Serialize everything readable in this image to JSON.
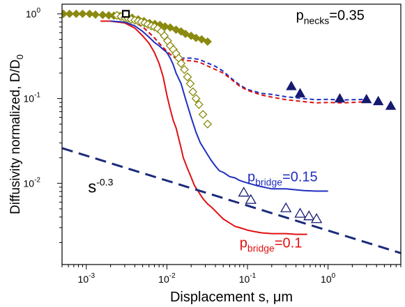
{
  "chart_data": {
    "type": "line",
    "xlabel": "Displacement s, μm",
    "ylabel": "Diffusivity normalized, D/D",
    "ylabel_subscript": "0",
    "x_scale": "log",
    "y_scale": "log",
    "xlim": [
      0.0005,
      8
    ],
    "ylim": [
      0.0011,
      1.3
    ],
    "x_ticks": [
      {
        "value": 0.001,
        "base": "10",
        "exp": "-3"
      },
      {
        "value": 0.01,
        "base": "10",
        "exp": "-2"
      },
      {
        "value": 0.1,
        "base": "10",
        "exp": "-1"
      },
      {
        "value": 1,
        "base": "10",
        "exp": "0"
      }
    ],
    "y_ticks": [
      {
        "value": 1,
        "base": "10",
        "exp": "0"
      },
      {
        "value": 0.1,
        "base": "10",
        "exp": "-1"
      },
      {
        "value": 0.01,
        "base": "10",
        "exp": "-2"
      }
    ],
    "annotations": [
      {
        "id": "pnecks",
        "text": "p",
        "sub": "necks",
        "tail": "=0.35",
        "x": 0.4,
        "y": 0.85,
        "color": "#000000"
      },
      {
        "id": "pbridge015",
        "text": "p",
        "sub": "bridge",
        "tail": "=0.15",
        "x": 0.1,
        "y": 0.0105,
        "color": "#1f2fbf"
      },
      {
        "id": "pbridge01",
        "text": "p",
        "sub": "bridge",
        "tail": "=0.1",
        "x": 0.08,
        "y": 0.00175,
        "color": "#e01010"
      },
      {
        "id": "power-law",
        "text": "s",
        "sup": "-0.3",
        "x": 0.00105,
        "y": 0.0078,
        "color": "#000000"
      }
    ],
    "series": [
      {
        "id": "red-solid",
        "style": "line",
        "color": "#e01010",
        "dash": false,
        "x": [
          0.0015,
          0.002,
          0.003,
          0.004,
          0.005,
          0.006,
          0.007,
          0.008,
          0.009,
          0.01,
          0.011,
          0.012,
          0.013,
          0.014,
          0.015,
          0.016,
          0.018,
          0.02,
          0.022,
          0.025,
          0.028,
          0.032,
          0.036,
          0.04,
          0.045,
          0.05,
          0.06,
          0.07,
          0.08,
          0.1,
          0.12,
          0.15,
          0.2,
          0.3,
          0.4,
          0.55
        ],
        "y": [
          0.82,
          0.82,
          0.78,
          0.68,
          0.55,
          0.45,
          0.35,
          0.26,
          0.18,
          0.11,
          0.075,
          0.055,
          0.045,
          0.034,
          0.026,
          0.02,
          0.015,
          0.0118,
          0.0094,
          0.0078,
          0.0066,
          0.0057,
          0.0052,
          0.0047,
          0.0042,
          0.0038,
          0.0034,
          0.0031,
          0.003,
          0.0028,
          0.0027,
          0.0026,
          0.00255,
          0.00255,
          0.0025,
          0.0025
        ]
      },
      {
        "id": "blue-solid",
        "style": "line",
        "color": "#1f2fbf",
        "dash": false,
        "x": [
          0.002,
          0.003,
          0.004,
          0.005,
          0.006,
          0.007,
          0.008,
          0.009,
          0.01,
          0.011,
          0.012,
          0.013,
          0.015,
          0.017,
          0.02,
          0.023,
          0.026,
          0.03,
          0.035,
          0.04,
          0.045,
          0.05,
          0.06,
          0.07,
          0.08,
          0.09,
          0.1,
          0.13,
          0.16,
          0.2,
          0.3,
          0.5,
          0.7,
          1.0
        ],
        "y": [
          0.82,
          0.8,
          0.72,
          0.62,
          0.53,
          0.46,
          0.42,
          0.38,
          0.35,
          0.3,
          0.25,
          0.2,
          0.15,
          0.1,
          0.06,
          0.04,
          0.03,
          0.024,
          0.019,
          0.016,
          0.014,
          0.0135,
          0.012,
          0.0116,
          0.0108,
          0.0104,
          0.0101,
          0.0094,
          0.009,
          0.0086,
          0.0086,
          0.0082,
          0.0081,
          0.0081
        ]
      },
      {
        "id": "blue-dashed",
        "style": "line",
        "color": "#1f2fbf",
        "dash": true,
        "x": [
          0.003,
          0.004,
          0.005,
          0.006,
          0.007,
          0.008,
          0.009,
          0.01,
          0.012,
          0.015,
          0.018,
          0.02,
          0.025,
          0.03,
          0.04,
          0.05,
          0.06,
          0.07,
          0.08,
          0.1,
          0.15,
          0.2,
          0.3,
          0.5,
          0.7,
          1.0,
          1.5,
          2.0,
          3.0
        ],
        "y": [
          0.85,
          0.8,
          0.7,
          0.6,
          0.52,
          0.45,
          0.4,
          0.36,
          0.31,
          0.3,
          0.3,
          0.3,
          0.29,
          0.27,
          0.24,
          0.21,
          0.18,
          0.16,
          0.145,
          0.128,
          0.115,
          0.112,
          0.105,
          0.1,
          0.097,
          0.098,
          0.096,
          0.097,
          0.098
        ]
      },
      {
        "id": "red-dashed",
        "style": "line",
        "color": "#e01010",
        "dash": true,
        "x": [
          0.003,
          0.004,
          0.005,
          0.006,
          0.007,
          0.008,
          0.009,
          0.01,
          0.012,
          0.015,
          0.018,
          0.02,
          0.025,
          0.03,
          0.04,
          0.05,
          0.06,
          0.07,
          0.08,
          0.1,
          0.15,
          0.2,
          0.3,
          0.5,
          0.7,
          1.0,
          1.5,
          2.0,
          3.0
        ],
        "y": [
          0.86,
          0.8,
          0.7,
          0.6,
          0.52,
          0.45,
          0.4,
          0.36,
          0.31,
          0.29,
          0.28,
          0.28,
          0.27,
          0.25,
          0.22,
          0.2,
          0.175,
          0.155,
          0.14,
          0.125,
          0.11,
          0.104,
          0.097,
          0.092,
          0.089,
          0.09,
          0.089,
          0.09,
          0.092
        ]
      },
      {
        "id": "fit-power-law",
        "style": "line",
        "color": "#1a2a7a",
        "dash": true,
        "x": [
          0.0005,
          8
        ],
        "y": [
          0.026,
          0.0015
        ]
      },
      {
        "id": "olive-filled-diamonds",
        "style": "marker",
        "marker": "diamond",
        "filled": true,
        "color": "#8a8a10",
        "x": [
          0.00052,
          0.00062,
          0.00075,
          0.0009,
          0.0011,
          0.0013,
          0.0016,
          0.0019,
          0.0022,
          0.0026,
          0.0031,
          0.0037,
          0.0044,
          0.0052,
          0.0061,
          0.0071,
          0.0082,
          0.0095,
          0.011,
          0.013,
          0.015,
          0.017,
          0.02,
          0.023,
          0.027,
          0.032
        ],
        "y": [
          1.0,
          1.0,
          1.0,
          1.0,
          1.0,
          0.98,
          0.97,
          0.96,
          0.95,
          0.94,
          0.93,
          0.9,
          0.86,
          0.82,
          0.78,
          0.76,
          0.74,
          0.71,
          0.69,
          0.65,
          0.62,
          0.58,
          0.55,
          0.52,
          0.5,
          0.47
        ]
      },
      {
        "id": "olive-open-diamonds",
        "style": "marker",
        "marker": "diamond",
        "filled": false,
        "color": "#8a8a10",
        "x": [
          0.0024,
          0.0027,
          0.003,
          0.0033,
          0.0036,
          0.004,
          0.0044,
          0.0048,
          0.0053,
          0.0058,
          0.0064,
          0.007,
          0.0077,
          0.0085,
          0.0093,
          0.0102,
          0.011,
          0.012,
          0.013,
          0.014,
          0.015,
          0.0165,
          0.018,
          0.0195,
          0.021,
          0.023,
          0.025,
          0.028,
          0.032
        ],
        "y": [
          0.96,
          0.93,
          0.9,
          0.88,
          0.86,
          0.84,
          0.82,
          0.8,
          0.78,
          0.75,
          0.72,
          0.7,
          0.67,
          0.62,
          0.55,
          0.48,
          0.42,
          0.38,
          0.34,
          0.3,
          0.26,
          0.22,
          0.18,
          0.15,
          0.12,
          0.1,
          0.085,
          0.065,
          0.05
        ]
      },
      {
        "id": "navy-filled-triangles",
        "style": "marker",
        "marker": "triangle",
        "filled": true,
        "color": "#151a70",
        "x": [
          0.35,
          0.45,
          1.4,
          3.0,
          4.2,
          6.0
        ],
        "y": [
          0.14,
          0.115,
          0.1,
          0.098,
          0.093,
          0.082
        ]
      },
      {
        "id": "navy-open-triangles",
        "style": "marker",
        "marker": "triangle",
        "filled": false,
        "color": "#151a70",
        "x": [
          0.09,
          0.11,
          0.3,
          0.45,
          0.58,
          0.72
        ],
        "y": [
          0.0078,
          0.0064,
          0.0051,
          0.0044,
          0.0041,
          0.0038
        ]
      },
      {
        "id": "black-open-square",
        "style": "marker",
        "marker": "square",
        "filled": false,
        "color": "#000000",
        "x": [
          0.0031
        ],
        "y": [
          1.0
        ]
      }
    ]
  }
}
